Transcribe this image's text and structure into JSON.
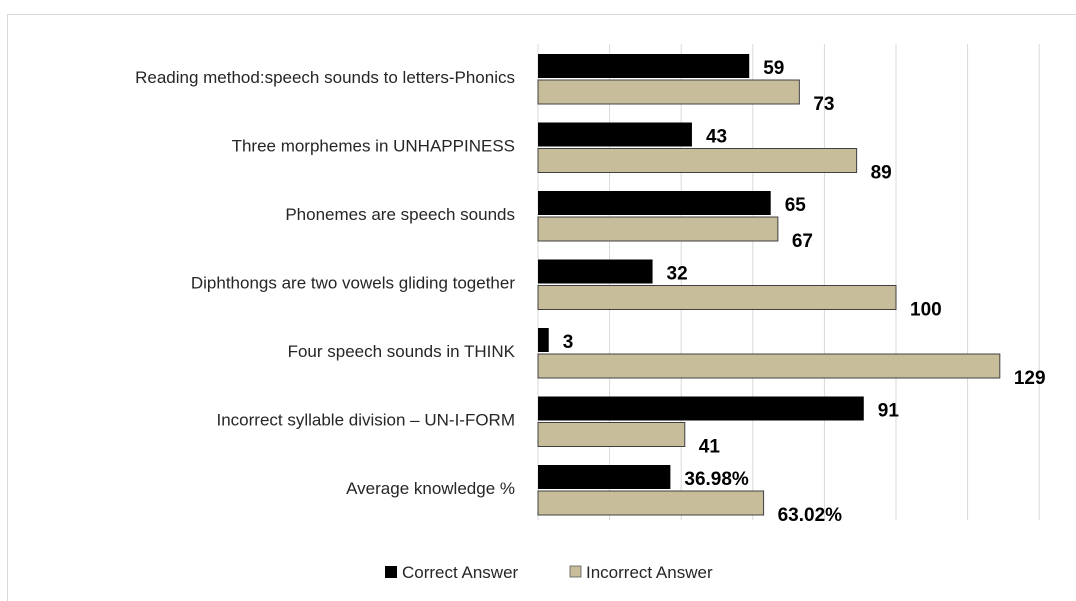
{
  "chart_data": {
    "type": "bar",
    "orientation": "horizontal",
    "categories": [
      "Reading method:speech sounds to letters-Phonics",
      "Three morphemes in UNHAPPINESS",
      "Phonemes are speech sounds",
      "Diphthongs are two vowels gliding together",
      "Four speech sounds in THINK",
      "Incorrect syllable division – UN-I-FORM",
      "Average knowledge %"
    ],
    "series": [
      {
        "name": "Correct Answer",
        "color": "#000000",
        "values": [
          59,
          43,
          65,
          32,
          3,
          91,
          36.98
        ],
        "labels": [
          "59",
          "43",
          "65",
          "32",
          "3",
          "91",
          "36.98%"
        ]
      },
      {
        "name": "Incorrect Answer",
        "color": "#c8bd9a",
        "values": [
          73,
          89,
          67,
          100,
          129,
          41,
          63.02
        ],
        "labels": [
          "73",
          "89",
          "67",
          "100",
          "129",
          "41",
          "63.02%"
        ]
      }
    ],
    "xlim": [
      0,
      140
    ],
    "grid": true,
    "legend_position": "bottom"
  }
}
